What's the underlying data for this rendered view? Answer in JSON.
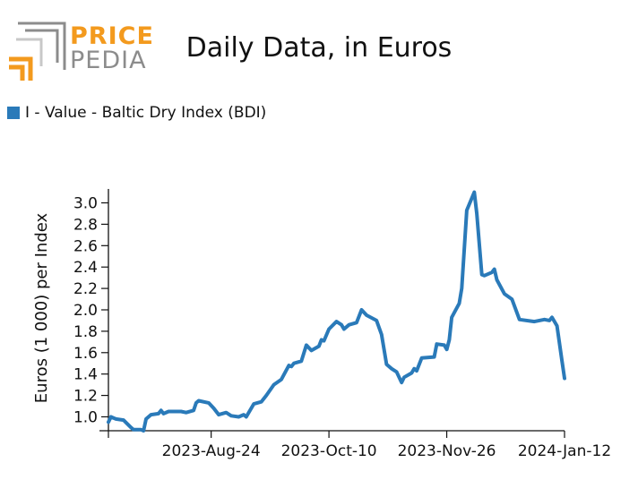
{
  "logo": {
    "word_top": "PRICE",
    "word_bottom": "PEDIA",
    "top_color": "#f39a1e",
    "bottom_color": "#8c8c8c"
  },
  "chart_data": {
    "type": "line",
    "title": "Daily Data, in Euros",
    "ylabel": "Euros (1 000) per Index",
    "xlabel": "",
    "ylim": [
      0.87,
      3.13
    ],
    "yticks": [
      1.0,
      1.2,
      1.4,
      1.6,
      1.8,
      2.0,
      2.2,
      2.4,
      2.6,
      2.8,
      3.0
    ],
    "ytick_labels": [
      "1.0",
      "1.2",
      "1.4",
      "1.6",
      "1.8",
      "2.0",
      "2.2",
      "2.4",
      "2.6",
      "2.8",
      "3.0"
    ],
    "xrange": [
      "2023-07-14",
      "2024-01-12"
    ],
    "xticks": [
      "2023-07-14",
      "2023-08-24",
      "2023-10-10",
      "2023-11-26",
      "2024-01-12"
    ],
    "xtick_labels": [
      "",
      "2023-Aug-24",
      "2023-Oct-10",
      "2023-Nov-26",
      "2024-Jan-12"
    ],
    "legend": {
      "position": "top-left"
    },
    "grid": false,
    "series": [
      {
        "name": "I - Value - Baltic Dry Index (BDI)",
        "color": "#2a7ab9",
        "points": [
          [
            "2023-07-14",
            0.95
          ],
          [
            "2023-07-15",
            1.0
          ],
          [
            "2023-07-17",
            0.98
          ],
          [
            "2023-07-20",
            0.97
          ],
          [
            "2023-07-23",
            0.9
          ],
          [
            "2023-07-24",
            0.88
          ],
          [
            "2023-07-27",
            0.88
          ],
          [
            "2023-07-28",
            0.87
          ],
          [
            "2023-07-29",
            0.98
          ],
          [
            "2023-07-31",
            1.02
          ],
          [
            "2023-08-03",
            1.03
          ],
          [
            "2023-08-04",
            1.06
          ],
          [
            "2023-08-05",
            1.03
          ],
          [
            "2023-08-07",
            1.05
          ],
          [
            "2023-08-09",
            1.05
          ],
          [
            "2023-08-12",
            1.05
          ],
          [
            "2023-08-14",
            1.04
          ],
          [
            "2023-08-17",
            1.06
          ],
          [
            "2023-08-18",
            1.13
          ],
          [
            "2023-08-19",
            1.15
          ],
          [
            "2023-08-23",
            1.13
          ],
          [
            "2023-08-25",
            1.08
          ],
          [
            "2023-08-27",
            1.02
          ],
          [
            "2023-08-30",
            1.04
          ],
          [
            "2023-09-01",
            1.01
          ],
          [
            "2023-09-04",
            1.0
          ],
          [
            "2023-09-06",
            1.02
          ],
          [
            "2023-09-07",
            1.0
          ],
          [
            "2023-09-10",
            1.12
          ],
          [
            "2023-09-13",
            1.14
          ],
          [
            "2023-09-15",
            1.2
          ],
          [
            "2023-09-18",
            1.3
          ],
          [
            "2023-09-21",
            1.35
          ],
          [
            "2023-09-24",
            1.48
          ],
          [
            "2023-09-25",
            1.47
          ],
          [
            "2023-09-26",
            1.5
          ],
          [
            "2023-09-29",
            1.52
          ],
          [
            "2023-10-01",
            1.67
          ],
          [
            "2023-10-03",
            1.62
          ],
          [
            "2023-10-06",
            1.66
          ],
          [
            "2023-10-07",
            1.72
          ],
          [
            "2023-10-08",
            1.71
          ],
          [
            "2023-10-10",
            1.82
          ],
          [
            "2023-10-13",
            1.89
          ],
          [
            "2023-10-15",
            1.86
          ],
          [
            "2023-10-16",
            1.82
          ],
          [
            "2023-10-18",
            1.86
          ],
          [
            "2023-10-21",
            1.88
          ],
          [
            "2023-10-23",
            2.0
          ],
          [
            "2023-10-25",
            1.95
          ],
          [
            "2023-10-29",
            1.9
          ],
          [
            "2023-10-31",
            1.77
          ],
          [
            "2023-11-02",
            1.49
          ],
          [
            "2023-11-04",
            1.45
          ],
          [
            "2023-11-06",
            1.42
          ],
          [
            "2023-11-08",
            1.32
          ],
          [
            "2023-11-09",
            1.37
          ],
          [
            "2023-11-12",
            1.41
          ],
          [
            "2023-11-13",
            1.45
          ],
          [
            "2023-11-14",
            1.43
          ],
          [
            "2023-11-16",
            1.55
          ],
          [
            "2023-11-21",
            1.56
          ],
          [
            "2023-11-22",
            1.68
          ],
          [
            "2023-11-25",
            1.67
          ],
          [
            "2023-11-26",
            1.63
          ],
          [
            "2023-11-27",
            1.72
          ],
          [
            "2023-11-28",
            1.93
          ],
          [
            "2023-12-01",
            2.06
          ],
          [
            "2023-12-02",
            2.2
          ],
          [
            "2023-12-04",
            2.93
          ],
          [
            "2023-12-07",
            3.1
          ],
          [
            "2023-12-08",
            2.9
          ],
          [
            "2023-12-10",
            2.33
          ],
          [
            "2023-12-11",
            2.32
          ],
          [
            "2023-12-14",
            2.35
          ],
          [
            "2023-12-15",
            2.38
          ],
          [
            "2023-12-16",
            2.28
          ],
          [
            "2023-12-19",
            2.15
          ],
          [
            "2023-12-22",
            2.1
          ],
          [
            "2023-12-25",
            1.91
          ],
          [
            "2023-12-31",
            1.89
          ],
          [
            "2024-01-04",
            1.91
          ],
          [
            "2024-01-06",
            1.9
          ],
          [
            "2024-01-07",
            1.93
          ],
          [
            "2024-01-09",
            1.85
          ],
          [
            "2024-01-11",
            1.52
          ],
          [
            "2024-01-12",
            1.36
          ]
        ]
      }
    ]
  }
}
